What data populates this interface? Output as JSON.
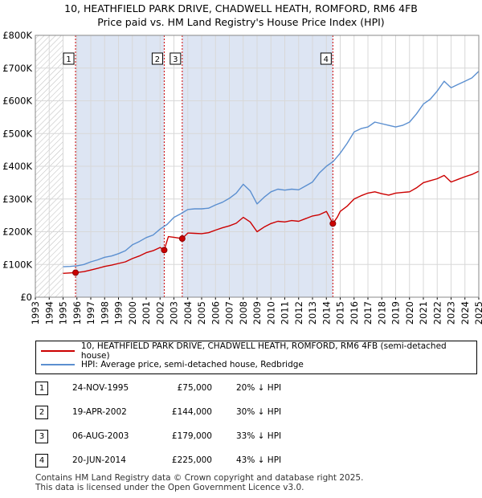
{
  "title_line1": "10, HEATHFIELD PARK DRIVE, CHADWELL HEATH, ROMFORD, RM6 4FB",
  "title_line2": "Price paid vs. HM Land Registry's House Price Index (HPI)",
  "colors": {
    "property": "#cc0000",
    "hpi": "#5b8fd0",
    "shade": "#dde5f3",
    "grid": "#d8d8d8",
    "vline": "#cc0000"
  },
  "legend": {
    "property_label": "10, HEATHFIELD PARK DRIVE, CHADWELL HEATH, ROMFORD, RM6 4FB (semi-detached house)",
    "hpi_label": "HPI: Average price, semi-detached house, Redbridge"
  },
  "sales": [
    {
      "num": "1",
      "date": "24-NOV-1995",
      "price": "£75,000",
      "hpi": "20% ↓ HPI"
    },
    {
      "num": "2",
      "date": "19-APR-2002",
      "price": "£144,000",
      "hpi": "30% ↓ HPI"
    },
    {
      "num": "3",
      "date": "06-AUG-2003",
      "price": "£179,000",
      "hpi": "33% ↓ HPI"
    },
    {
      "num": "4",
      "date": "20-JUN-2014",
      "price": "£225,000",
      "hpi": "43% ↓ HPI"
    }
  ],
  "footer_line1": "Contains HM Land Registry data © Crown copyright and database right 2025.",
  "footer_line2": "This data is licensed under the Open Government Licence v3.0.",
  "chart_data": {
    "type": "line",
    "title": "Price paid vs. HM Land Registry's House Price Index (HPI)",
    "xlim": [
      1993,
      2025
    ],
    "ylim": [
      0,
      800000
    ],
    "x_ticks": [
      "1993",
      "1994",
      "1995",
      "1996",
      "1997",
      "1998",
      "1999",
      "2000",
      "2001",
      "2002",
      "2003",
      "2004",
      "2005",
      "2006",
      "2007",
      "2008",
      "2009",
      "2010",
      "2011",
      "2012",
      "2013",
      "2014",
      "2015",
      "2016",
      "2017",
      "2018",
      "2019",
      "2020",
      "2021",
      "2022",
      "2023",
      "2024",
      "2025"
    ],
    "y_ticks": [
      {
        "value": 0,
        "label": "£0"
      },
      {
        "value": 100000,
        "label": "£100K"
      },
      {
        "value": 200000,
        "label": "£200K"
      },
      {
        "value": 300000,
        "label": "£300K"
      },
      {
        "value": 400000,
        "label": "£400K"
      },
      {
        "value": 500000,
        "label": "£500K"
      },
      {
        "value": 600000,
        "label": "£600K"
      },
      {
        "value": 700000,
        "label": "£700K"
      },
      {
        "value": 800000,
        "label": "£800K"
      }
    ],
    "hatched_before": 1995,
    "sale_markers": [
      {
        "label": "1",
        "x": 1995.9,
        "y": 75000
      },
      {
        "label": "2",
        "x": 2002.3,
        "y": 144000
      },
      {
        "label": "3",
        "x": 2003.6,
        "y": 179000
      },
      {
        "label": "4",
        "x": 2014.47,
        "y": 225000
      }
    ],
    "series": [
      {
        "name": "HPI: Average price, semi-detached house, Redbridge",
        "color": "#5b8fd0",
        "x": [
          1995,
          1995.5,
          1996,
          1996.5,
          1997,
          1997.5,
          1998,
          1998.5,
          1999,
          1999.5,
          2000,
          2000.5,
          2001,
          2001.5,
          2002,
          2002.5,
          2003,
          2003.5,
          2004,
          2004.5,
          2005,
          2005.5,
          2006,
          2006.5,
          2007,
          2007.5,
          2008,
          2008.5,
          2009,
          2009.5,
          2010,
          2010.5,
          2011,
          2011.5,
          2012,
          2012.5,
          2013,
          2013.5,
          2014,
          2014.5,
          2015,
          2015.5,
          2016,
          2016.5,
          2017,
          2017.5,
          2018,
          2018.5,
          2019,
          2019.5,
          2020,
          2020.5,
          2021,
          2021.5,
          2022,
          2022.5,
          2023,
          2023.5,
          2024,
          2024.5,
          2025
        ],
        "values": [
          93000,
          94000,
          96000,
          100000,
          108000,
          114000,
          122000,
          126000,
          133000,
          142000,
          160000,
          170000,
          182000,
          190000,
          208000,
          222000,
          244000,
          255000,
          268000,
          270000,
          270000,
          272000,
          282000,
          290000,
          302000,
          318000,
          345000,
          325000,
          285000,
          305000,
          322000,
          330000,
          327000,
          330000,
          328000,
          340000,
          352000,
          380000,
          400000,
          415000,
          440000,
          470000,
          505000,
          515000,
          520000,
          535000,
          530000,
          525000,
          520000,
          525000,
          535000,
          560000,
          590000,
          605000,
          630000,
          660000,
          640000,
          650000,
          660000,
          670000,
          690000
        ]
      },
      {
        "name": "10, HEATHFIELD PARK DRIVE, CHADWELL HEATH, ROMFORD, RM6 4FB (semi-detached house)",
        "color": "#cc0000",
        "x": [
          1995,
          1995.5,
          1995.9,
          1996.5,
          1997,
          1997.5,
          1998,
          1998.5,
          1999,
          1999.5,
          2000,
          2000.5,
          2001,
          2001.5,
          2002,
          2002.3,
          2002.6,
          2003,
          2003.6,
          2004,
          2004.5,
          2005,
          2005.5,
          2006,
          2006.5,
          2007,
          2007.5,
          2008,
          2008.5,
          2009,
          2009.5,
          2010,
          2010.5,
          2011,
          2011.5,
          2012,
          2012.5,
          2013,
          2013.5,
          2014,
          2014.47,
          2014.8,
          2015,
          2015.5,
          2016,
          2016.5,
          2017,
          2017.5,
          2018,
          2018.5,
          2019,
          2019.5,
          2020,
          2020.5,
          2021,
          2021.5,
          2022,
          2022.5,
          2023,
          2023.5,
          2024,
          2024.5,
          2025
        ],
        "values": [
          73000,
          74000,
          75000,
          78000,
          83000,
          88000,
          94000,
          98000,
          103000,
          108000,
          118000,
          126000,
          136000,
          142000,
          152000,
          144000,
          185000,
          183000,
          179000,
          196000,
          195000,
          194000,
          197000,
          205000,
          212000,
          218000,
          226000,
          244000,
          230000,
          200000,
          214000,
          225000,
          232000,
          230000,
          234000,
          232000,
          240000,
          248000,
          252000,
          262000,
          225000,
          245000,
          262000,
          278000,
          300000,
          310000,
          318000,
          322000,
          316000,
          312000,
          318000,
          320000,
          322000,
          334000,
          350000,
          356000,
          362000,
          372000,
          352000,
          360000,
          368000,
          375000,
          385000
        ]
      }
    ]
  }
}
